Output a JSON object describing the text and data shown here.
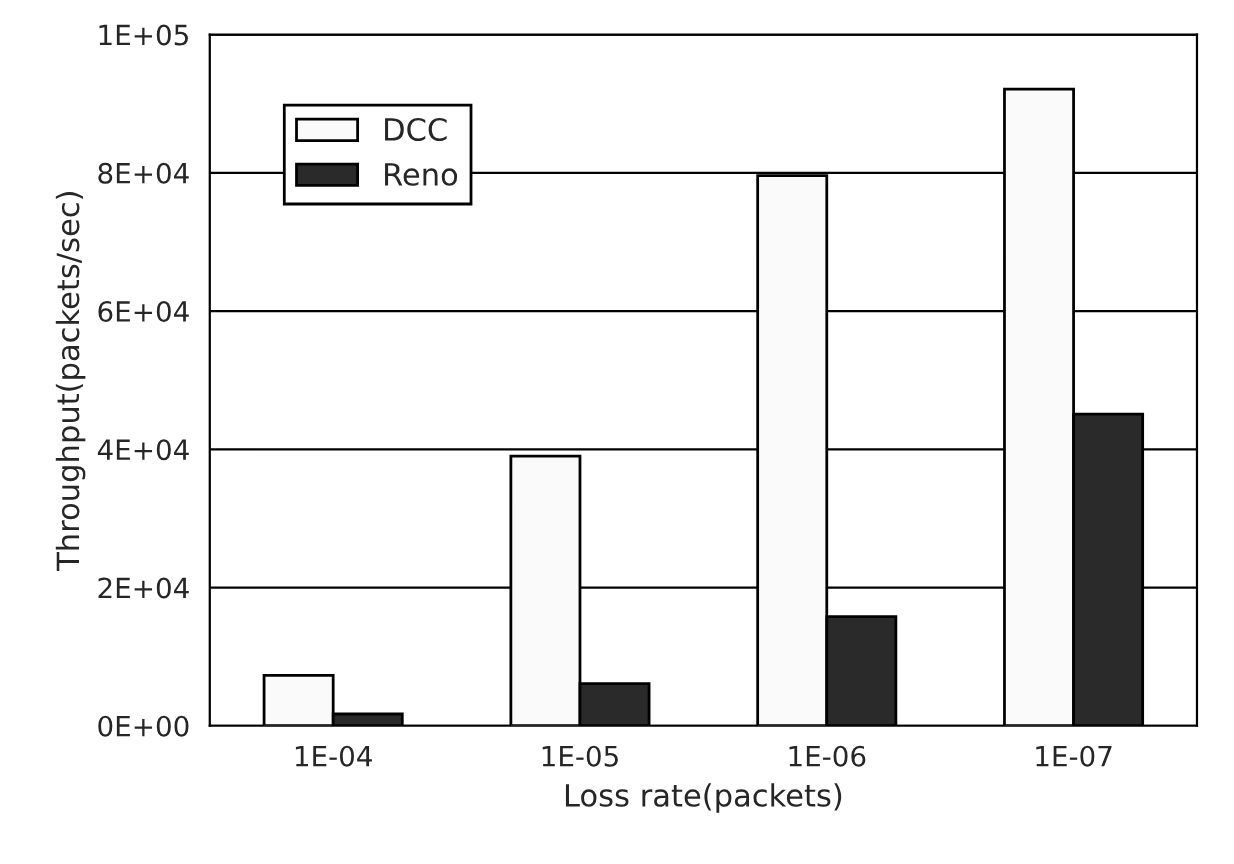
{
  "chart_data": {
    "type": "bar",
    "xlabel": "Loss rate(packets)",
    "ylabel": "Throughput(packets/sec)",
    "categories": [
      "1E-04",
      "1E-05",
      "1E-06",
      "1E-07"
    ],
    "series": [
      {
        "name": "DCC",
        "color": "#fafafa",
        "values": [
          7300,
          39000,
          79600,
          92100
        ]
      },
      {
        "name": "Reno",
        "color": "#2a2a2a",
        "values": [
          1700,
          6100,
          15800,
          45100
        ]
      }
    ],
    "ylim": [
      0,
      100000
    ],
    "yticks": [
      {
        "value": 0,
        "label": "0E+00"
      },
      {
        "value": 20000,
        "label": "2E+04"
      },
      {
        "value": 40000,
        "label": "4E+04"
      },
      {
        "value": 60000,
        "label": "6E+04"
      },
      {
        "value": 80000,
        "label": "8E+04"
      },
      {
        "value": 100000,
        "label": "1E+05"
      }
    ],
    "grid": "y",
    "legend": "top left"
  }
}
